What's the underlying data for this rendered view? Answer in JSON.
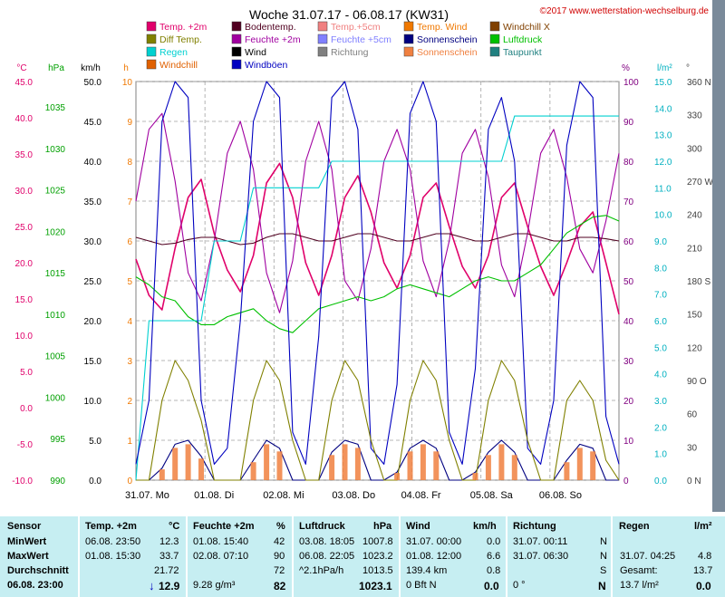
{
  "chart_data": {
    "type": "line",
    "title": "Woche 31.07.17 - 06.08.17 (KW31)",
    "copyright": "©2017 www.wetterstation-wechselburg.de",
    "legend": [
      {
        "name": "Temp. +2m",
        "color": "#e0006a"
      },
      {
        "name": "Bodentemp.",
        "color": "#500020"
      },
      {
        "name": "Temp.+5cm",
        "color": "#f08080"
      },
      {
        "name": "Temp. Wind",
        "color": "#f07800"
      },
      {
        "name": "Windchill X",
        "color": "#804000"
      },
      {
        "name": "Diff Temp.",
        "color": "#808000"
      },
      {
        "name": "Feuchte +2m",
        "color": "#a000a0"
      },
      {
        "name": "Feuchte +5cm",
        "color": "#8080ff"
      },
      {
        "name": "Sonnenschein",
        "color": "#000080"
      },
      {
        "name": "Luftdruck",
        "color": "#00c000"
      },
      {
        "name": "Regen",
        "color": "#00d0d0"
      },
      {
        "name": "Wind",
        "color": "#000000"
      },
      {
        "name": "Richtung",
        "color": "#808080"
      },
      {
        "name": "Sonnenschein",
        "color": "#f08040"
      },
      {
        "name": "Taupunkt",
        "color": "#208080"
      },
      {
        "name": "Windchill",
        "color": "#e06000"
      },
      {
        "name": "Windböen",
        "color": "#0000c0"
      }
    ],
    "axes": {
      "temp": {
        "label": "°C",
        "ticks": [
          "45.0",
          "40.0",
          "35.0",
          "30.0",
          "25.0",
          "20.0",
          "15.0",
          "10.0",
          "5.0",
          "0.0",
          "-5.0",
          "-10.0"
        ],
        "color": "#e0006a"
      },
      "pressure": {
        "label": "hPa",
        "ticks": [
          "1035",
          "1030",
          "1025",
          "1020",
          "1015",
          "1010",
          "1005",
          "1000",
          "995",
          "990"
        ],
        "color": "#00a000"
      },
      "wind": {
        "label": "km/h",
        "ticks": [
          "50.0",
          "45.0",
          "40.0",
          "35.0",
          "30.0",
          "25.0",
          "20.0",
          "15.0",
          "10.0",
          "5.0",
          "0.0"
        ],
        "color": "#000000"
      },
      "hours": {
        "label": "h",
        "ticks": [
          "10",
          "9",
          "8",
          "7",
          "6",
          "5",
          "4",
          "3",
          "2",
          "1",
          "0"
        ],
        "color": "#f07800"
      },
      "humidity": {
        "label": "%",
        "ticks": [
          "100",
          "90",
          "80",
          "70",
          "60",
          "50",
          "40",
          "30",
          "20",
          "10",
          "0"
        ],
        "color": "#800080"
      },
      "rain": {
        "label": "l/m²",
        "ticks": [
          "15.0",
          "14.0",
          "13.0",
          "12.0",
          "11.0",
          "10.0",
          "9.0",
          "8.0",
          "7.0",
          "6.0",
          "5.0",
          "4.0",
          "3.0",
          "2.0",
          "1.0",
          "0.0"
        ],
        "color": "#00b0c0"
      },
      "direction": {
        "label": "°",
        "ticks": [
          "360 N",
          "330",
          "300",
          "270 W",
          "240",
          "210",
          "180 S",
          "150",
          "120",
          "90 O",
          "60",
          "30",
          "0 N"
        ],
        "color": "#404040"
      }
    },
    "x_labels": [
      "31.07. Mo",
      "01.08. Di",
      "02.08. Mi",
      "03.08. Do",
      "04.08. Fr",
      "05.08. Sa",
      "06.08. So"
    ],
    "series": [
      {
        "name": "Temp. +2m",
        "unit": "°C",
        "values": [
          20.5,
          15.5,
          13.5,
          22.0,
          29.0,
          31.5,
          24.0,
          19.0,
          16.0,
          21.0,
          31.0,
          33.7,
          29.0,
          20.0,
          15.5,
          21.0,
          29.0,
          32.0,
          27.0,
          20.0,
          16.5,
          21.0,
          29.0,
          31.0,
          25.0,
          19.5,
          16.5,
          21.0,
          29.0,
          31.0,
          25.0,
          19.5,
          15.5,
          20.0,
          25.0,
          27.0,
          20.0,
          12.9
        ]
      },
      {
        "name": "Feuchte +2m",
        "unit": "%",
        "values": [
          70,
          88,
          92,
          75,
          52,
          45,
          60,
          82,
          90,
          78,
          52,
          42,
          55,
          80,
          90,
          78,
          50,
          45,
          58,
          80,
          88,
          78,
          55,
          46,
          60,
          82,
          88,
          76,
          54,
          46,
          62,
          82,
          88,
          76,
          58,
          52,
          65,
          82
        ]
      },
      {
        "name": "Luftdruck",
        "unit": "hPa",
        "values": [
          1015.5,
          1014.5,
          1013.0,
          1012.5,
          1010.5,
          1009.5,
          1009.5,
          1010.5,
          1011.0,
          1011.5,
          1010.0,
          1009.0,
          1008.5,
          1010.0,
          1011.5,
          1012.0,
          1012.5,
          1013.0,
          1012.5,
          1013.0,
          1014.0,
          1014.5,
          1014.0,
          1013.5,
          1013.0,
          1014.0,
          1015.0,
          1015.5,
          1015.0,
          1015.0,
          1016.0,
          1017.0,
          1019.0,
          1021.0,
          1022.0,
          1023.0,
          1023.2,
          1022.5
        ]
      },
      {
        "name": "Bodentemp.",
        "unit": "°C",
        "values": [
          23.5,
          23.0,
          22.5,
          22.7,
          23.2,
          23.5,
          23.5,
          23.0,
          22.5,
          22.7,
          23.5,
          24.0,
          24.0,
          23.5,
          23.0,
          23.0,
          23.5,
          24.0,
          24.0,
          23.5,
          23.0,
          23.0,
          23.5,
          24.0,
          24.0,
          23.5,
          23.0,
          23.0,
          23.5,
          24.0,
          24.0,
          23.5,
          23.0,
          23.0,
          23.5,
          23.5,
          23.3,
          23.0
        ]
      },
      {
        "name": "Regen",
        "unit": "l/m²",
        "values": [
          0.0,
          6.0,
          6.0,
          6.0,
          6.0,
          6.0,
          9.0,
          9.0,
          9.0,
          11.0,
          11.0,
          11.0,
          11.0,
          11.0,
          11.0,
          12.0,
          12.0,
          12.0,
          12.0,
          12.0,
          12.0,
          12.0,
          12.0,
          12.0,
          12.0,
          12.0,
          12.0,
          12.0,
          12.0,
          13.7,
          13.7,
          13.7,
          13.7,
          13.7,
          13.7,
          13.7,
          13.7,
          13.7
        ]
      },
      {
        "name": "Windböen",
        "unit": "km/h",
        "values": [
          2,
          10,
          45,
          50,
          48,
          10,
          2,
          4,
          20,
          45,
          50,
          48,
          6,
          2,
          18,
          48,
          50,
          44,
          4,
          2,
          12,
          46,
          50,
          45,
          6,
          2,
          14,
          44,
          48,
          40,
          4,
          2,
          10,
          42,
          50,
          48,
          8,
          2
        ]
      },
      {
        "name": "Sonnenschein",
        "unit": "h",
        "values": [
          0,
          0,
          0.3,
          0.9,
          1.0,
          0.6,
          0,
          0,
          0,
          0.5,
          1.0,
          0.8,
          0,
          0,
          0,
          0.7,
          1.0,
          0.9,
          0,
          0,
          0.2,
          0.8,
          1.0,
          0.8,
          0,
          0,
          0.2,
          0.7,
          1.0,
          0.7,
          0,
          0,
          0,
          0.5,
          0.9,
          0.8,
          0,
          0
        ]
      },
      {
        "name": "Diff Temp.",
        "unit": "°C",
        "values": [
          0.0,
          0.0,
          2.0,
          3.0,
          2.5,
          1.5,
          0.0,
          -0.5,
          -0.5,
          2.0,
          3.0,
          2.5,
          1.0,
          -0.5,
          -0.5,
          2.0,
          3.0,
          2.5,
          1.0,
          -0.5,
          -0.5,
          2.0,
          3.0,
          2.5,
          1.0,
          -0.5,
          -0.5,
          2.0,
          3.0,
          2.5,
          1.0,
          -0.5,
          -0.5,
          2.0,
          2.5,
          2.0,
          0.5,
          -0.5
        ]
      }
    ],
    "grid": true
  },
  "table": {
    "headers": {
      "sensor": "Sensor",
      "temp": "Temp. +2m",
      "temp_unit": "°C",
      "hum": "Feuchte +2m",
      "hum_unit": "%",
      "press": "Luftdruck",
      "press_unit": "hPa",
      "wind": "Wind",
      "wind_unit": "km/h",
      "dir": "Richtung",
      "rain": "Regen",
      "rain_unit": "l/m²"
    },
    "rows": {
      "min": {
        "label": "MinWert",
        "temp_date": "06.08. 23:50",
        "temp_val": "12.3",
        "hum_date": "01.08. 15:40",
        "hum_val": "42",
        "press_date": "03.08. 18:05",
        "press_val": "1007.8",
        "wind_date": "31.07. 00:00",
        "wind_val": "0.0",
        "dir_date": "31.07. 00:11",
        "dir_val": "N"
      },
      "max": {
        "label": "MaxWert",
        "temp_date": "01.08. 15:30",
        "temp_val": "33.7",
        "hum_date": "02.08. 07:10",
        "hum_val": "90",
        "press_date": "06.08. 22:05",
        "press_val": "1023.2",
        "wind_date": "01.08. 12:00",
        "wind_val": "6.6",
        "dir_date": "31.07. 06:30",
        "dir_val": "N",
        "rain_date": "31.07. 04:25",
        "rain_val": "4.8"
      },
      "avg": {
        "label": "Durchschnitt",
        "temp_val": "21.72",
        "hum_val": "72",
        "press_date": "^2.1hPa/h",
        "press_val": "1013.5",
        "wind_date": "139.4 km",
        "wind_val": "0.8",
        "dir_val": "S",
        "rain_date": "Gesamt:",
        "rain_val": "13.7"
      },
      "cur": {
        "label": "06.08. 23:00",
        "temp_arrow": "↓",
        "temp_val": "12.9",
        "hum_abs": "9.28 g/m³",
        "hum_val": "82",
        "press_val": "1023.1",
        "wind_bft": "0 Bft N",
        "wind_val": "0.0",
        "dir_deg": "0 °",
        "dir_val": "N",
        "rain_text": "13.7 l/m²",
        "rain_val": "0.0"
      }
    }
  }
}
